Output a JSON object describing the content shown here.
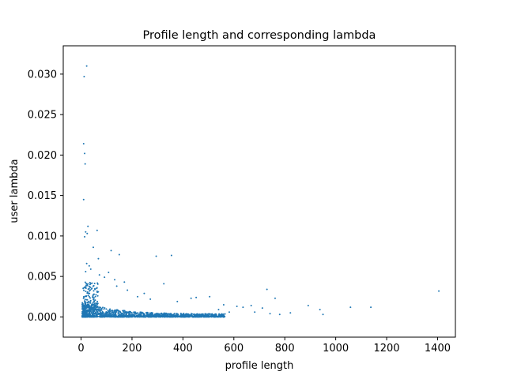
{
  "chart_data": {
    "type": "scatter",
    "title": "Profile length and corresponding lambda",
    "xlabel": "profile length",
    "ylabel": "user lambda",
    "xlim": [
      -70,
      1470
    ],
    "ylim": [
      -0.0025,
      0.0335
    ],
    "x_ticks": [
      {
        "value": 0,
        "label": "0"
      },
      {
        "value": 200,
        "label": "200"
      },
      {
        "value": 400,
        "label": "400"
      },
      {
        "value": 600,
        "label": "600"
      },
      {
        "value": 800,
        "label": "800"
      },
      {
        "value": 1000,
        "label": "1000"
      },
      {
        "value": 1200,
        "label": "1200"
      },
      {
        "value": 1400,
        "label": "1400"
      }
    ],
    "y_ticks": [
      {
        "value": 0.0,
        "label": "0.000"
      },
      {
        "value": 0.005,
        "label": "0.005"
      },
      {
        "value": 0.01,
        "label": "0.010"
      },
      {
        "value": 0.015,
        "label": "0.015"
      },
      {
        "value": 0.02,
        "label": "0.020"
      },
      {
        "value": 0.025,
        "label": "0.025"
      },
      {
        "value": 0.03,
        "label": "0.030"
      }
    ],
    "grid": false,
    "marker_color": "#1f77b4",
    "points": [
      {
        "x": 22,
        "y": 0.031
      },
      {
        "x": 12,
        "y": 0.0297
      },
      {
        "x": 10,
        "y": 0.0214
      },
      {
        "x": 14,
        "y": 0.0202
      },
      {
        "x": 16,
        "y": 0.0189
      },
      {
        "x": 10,
        "y": 0.0145
      },
      {
        "x": 27,
        "y": 0.0112
      },
      {
        "x": 63,
        "y": 0.0107
      },
      {
        "x": 18,
        "y": 0.0105
      },
      {
        "x": 24,
        "y": 0.0103
      },
      {
        "x": 14,
        "y": 0.0099
      },
      {
        "x": 48,
        "y": 0.0086
      },
      {
        "x": 118,
        "y": 0.0082
      },
      {
        "x": 150,
        "y": 0.0077
      },
      {
        "x": 68,
        "y": 0.0072
      },
      {
        "x": 295,
        "y": 0.0075
      },
      {
        "x": 355,
        "y": 0.0076
      },
      {
        "x": 22,
        "y": 0.0066
      },
      {
        "x": 32,
        "y": 0.0063
      },
      {
        "x": 38,
        "y": 0.0059
      },
      {
        "x": 18,
        "y": 0.0056
      },
      {
        "x": 72,
        "y": 0.0052
      },
      {
        "x": 92,
        "y": 0.0049
      },
      {
        "x": 108,
        "y": 0.0055
      },
      {
        "x": 132,
        "y": 0.0046
      },
      {
        "x": 170,
        "y": 0.0043
      },
      {
        "x": 325,
        "y": 0.0041
      },
      {
        "x": 730,
        "y": 0.0034
      },
      {
        "x": 1405,
        "y": 0.0032
      },
      {
        "x": 140,
        "y": 0.0038
      },
      {
        "x": 182,
        "y": 0.0033
      },
      {
        "x": 248,
        "y": 0.0029
      },
      {
        "x": 452,
        "y": 0.0024
      },
      {
        "x": 505,
        "y": 0.0025
      },
      {
        "x": 762,
        "y": 0.0023
      },
      {
        "x": 432,
        "y": 0.0023
      },
      {
        "x": 272,
        "y": 0.0022
      },
      {
        "x": 378,
        "y": 0.0019
      },
      {
        "x": 222,
        "y": 0.0025
      },
      {
        "x": 892,
        "y": 0.0014
      },
      {
        "x": 938,
        "y": 0.0009
      },
      {
        "x": 1058,
        "y": 0.0012
      },
      {
        "x": 1138,
        "y": 0.0012
      },
      {
        "x": 950,
        "y": 0.0003
      },
      {
        "x": 668,
        "y": 0.0014
      },
      {
        "x": 682,
        "y": 0.0006
      },
      {
        "x": 712,
        "y": 0.0011
      },
      {
        "x": 742,
        "y": 0.0004
      },
      {
        "x": 780,
        "y": 0.0003
      },
      {
        "x": 822,
        "y": 0.0005
      },
      {
        "x": 636,
        "y": 0.0012
      },
      {
        "x": 612,
        "y": 0.0013
      },
      {
        "x": 582,
        "y": 0.0006
      },
      {
        "x": 560,
        "y": 0.0015
      },
      {
        "x": 540,
        "y": 0.0009
      }
    ]
  }
}
